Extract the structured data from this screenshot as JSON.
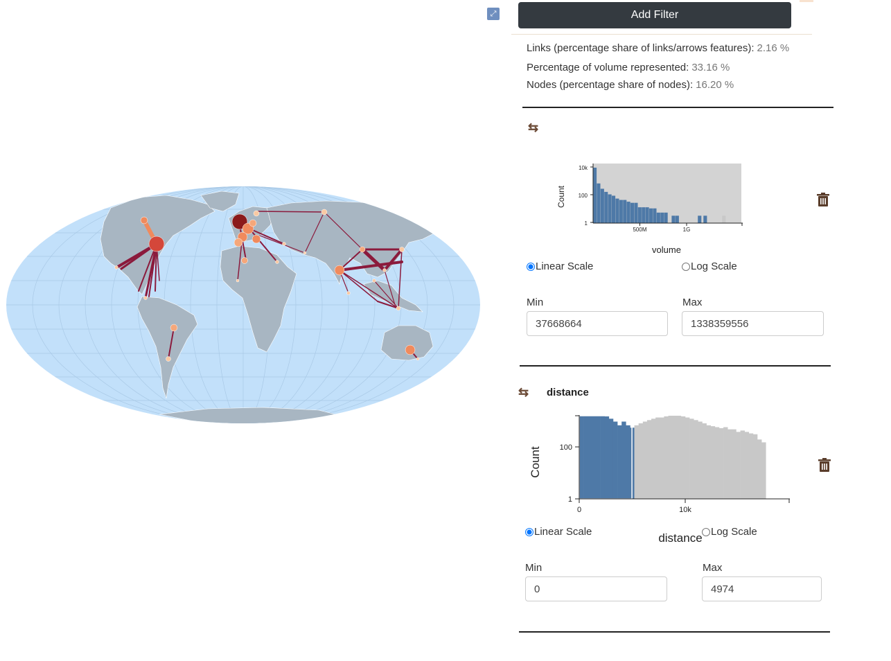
{
  "header": {
    "add_filter_label": "Add Filter"
  },
  "stats": [
    {
      "label": "Links (percentage share of links/arrows features):",
      "value": "2.16 %"
    },
    {
      "label": "Percentage of volume represented:",
      "value": "33.16 %"
    },
    {
      "label": "Nodes (percentage share of nodes):",
      "value": "16.20 %"
    }
  ],
  "icons": {
    "expand": "expand-icon",
    "swap": "swap-arrows-icon",
    "trash": "trash-icon"
  },
  "colors": {
    "ocean": "#c2e0fa",
    "land": "#a8b6c2",
    "bar_selected": "#4e79a7",
    "bar_unselected": "#c8c8c8",
    "link": "#8b1a3c",
    "node_light": "#f9c9a3",
    "node_mid": "#f08a5d",
    "node_dark": "#b22a2a"
  },
  "filters": [
    {
      "title": "",
      "scale_options": {
        "linear": "Linear Scale",
        "log": "Log Scale",
        "selected": "linear"
      },
      "min_label": "Min",
      "max_label": "Max",
      "min_value": "37668664",
      "max_value": "1338359556",
      "chart_data": {
        "type": "bar",
        "ylabel": "Count",
        "xlabel": "volume",
        "y_scale": "log",
        "y_ticks": [
          "1",
          "100",
          "10k"
        ],
        "x_ticks": [
          "500M",
          "1G"
        ],
        "xlim": [
          0,
          1600000000
        ],
        "selected_range": [
          37668664,
          1338359556
        ],
        "bins_x_start": [
          0,
          40000000,
          80000000,
          120000000,
          160000000,
          200000000,
          240000000,
          280000000,
          320000000,
          360000000,
          400000000,
          440000000,
          480000000,
          520000000,
          560000000,
          600000000,
          640000000,
          680000000,
          720000000,
          760000000,
          840000000,
          880000000,
          1120000000,
          1180000000,
          1380000000
        ],
        "bins_count": [
          8000,
          600,
          250,
          150,
          100,
          80,
          50,
          40,
          40,
          30,
          25,
          25,
          12,
          12,
          12,
          10,
          10,
          5,
          5,
          5,
          3,
          3,
          3,
          3,
          3
        ]
      }
    },
    {
      "title": "distance",
      "scale_options": {
        "linear": "Linear Scale",
        "log": "Log Scale",
        "selected": "linear"
      },
      "min_label": "Min",
      "max_label": "Max",
      "min_value": "0",
      "max_value": "4974",
      "chart_data": {
        "type": "bar",
        "ylabel": "Count",
        "xlabel": "distance",
        "y_scale": "log",
        "y_ticks": [
          "1",
          "100"
        ],
        "x_ticks": [
          "0",
          "10k"
        ],
        "xlim": [
          0,
          20000
        ],
        "selected_range": [
          0,
          4974
        ],
        "bin_width": 400,
        "bins_count": [
          1000,
          950,
          900,
          1000,
          700,
          800,
          600,
          500,
          400,
          300,
          400,
          300,
          250,
          300,
          350,
          400,
          450,
          500,
          550,
          550,
          600,
          650,
          700,
          650,
          600,
          550,
          500,
          450,
          400,
          350,
          300,
          280,
          260,
          240,
          260,
          220,
          220,
          180,
          200,
          180,
          160,
          150,
          100,
          80
        ]
      }
    }
  ]
}
